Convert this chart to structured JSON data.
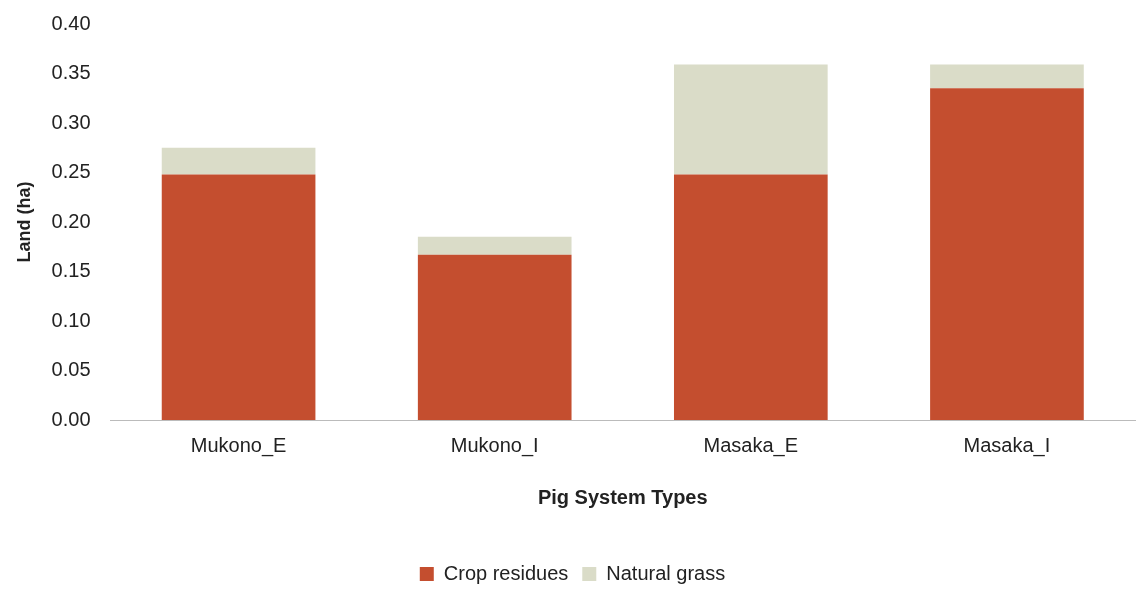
{
  "chart_data": {
    "type": "bar",
    "stacked": true,
    "xlabel": "Pig System Types",
    "ylabel": "Land (ha)",
    "categories": [
      "Mukono_E",
      "Mukono_I",
      "Masaka_E",
      "Masaka_I"
    ],
    "series": [
      {
        "name": "Crop residues",
        "color": "#c44e2f",
        "values": [
          0.248,
          0.167,
          0.248,
          0.335
        ]
      },
      {
        "name": "Natural grass",
        "color": "#dadcc8",
        "values": [
          0.027,
          0.018,
          0.111,
          0.024
        ]
      }
    ],
    "ylim": [
      0,
      0.4
    ],
    "yticks": [
      {
        "value": 0,
        "label": "0.00"
      },
      {
        "value": 0.05,
        "label": "0.05"
      },
      {
        "value": 0.1,
        "label": "0.10"
      },
      {
        "value": 0.15,
        "label": "0.15"
      },
      {
        "value": 0.2,
        "label": "0.20"
      },
      {
        "value": 0.25,
        "label": "0.25"
      },
      {
        "value": 0.3,
        "label": "0.30"
      },
      {
        "value": 0.35,
        "label": "0.35"
      },
      {
        "value": 0.4,
        "label": "0.40"
      }
    ],
    "grid": false,
    "legend": "bottom"
  }
}
